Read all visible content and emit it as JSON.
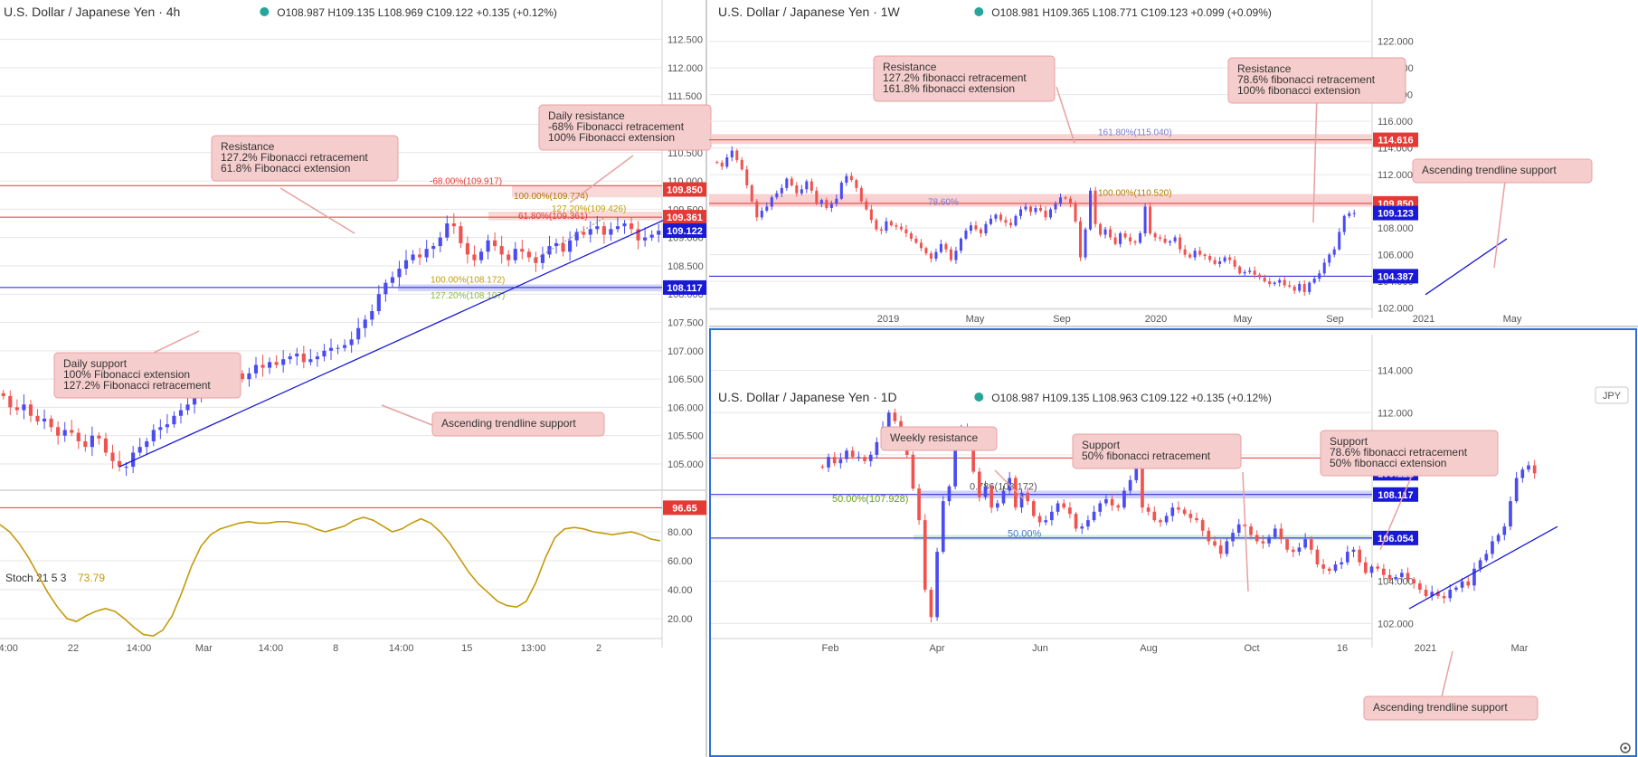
{
  "colors": {
    "up": "#4b4bf0",
    "down": "#ef5350",
    "resistance": "#e53935",
    "support": "#1a1ad6",
    "trend": "#1a1ad6",
    "stoch": "#c49a0a",
    "callout_bg": "#f6cdcd",
    "callout_border": "#e8a0a0",
    "zone_red": "#f6c7c7",
    "zone_blue": "#c7c9f7",
    "grid": "#e6e6e6",
    "axis_text": "#555555",
    "header_text": "#333333",
    "status_dot": "#26a69a",
    "active_border": "#2b6fd6"
  },
  "panels": [
    {
      "id": "4h",
      "title": "U.S. Dollar / Japanese Yen · 4h",
      "ohlc": "O108.987  H109.135  L108.969  C109.122  +0.135 (+0.12%)"
    },
    {
      "id": "1w",
      "title": "U.S. Dollar / Japanese Yen · 1W",
      "ohlc": "O108.981  H109.365  L108.771  C109.123  +0.099 (+0.09%)"
    },
    {
      "id": "1d",
      "title": "U.S. Dollar / Japanese Yen · 1D",
      "ohlc": "O108.987  H109.135  L108.963  C109.122  +0.135 (+0.12%)",
      "currency_badge": "JPY"
    }
  ],
  "stoch": {
    "label": "Stoch 21 5 3",
    "value": "73.79"
  },
  "chart_data": [
    {
      "panel": "4h",
      "type": "candlestick",
      "title": "U.S. Dollar / Japanese Yen · 4h",
      "ylim": [
        104.6,
        112.75
      ],
      "yticks": [
        "112.500",
        "112.000",
        "111.500",
        "111.000",
        "110.500",
        "110.000",
        "109.500",
        "109.000",
        "108.500",
        "108.000",
        "107.500",
        "107.000",
        "106.500",
        "106.000",
        "105.500",
        "105.000"
      ],
      "xticks": [
        "14:00",
        "22",
        "14:00",
        "Mar",
        "14:00",
        "8",
        "14:00",
        "15",
        "13:00",
        "2"
      ],
      "price_labels": [
        {
          "text": "109.850",
          "value": 109.85,
          "kind": "resistance"
        },
        {
          "text": "109.361",
          "value": 109.361,
          "kind": "resistance"
        },
        {
          "text": "109.122",
          "value": 109.122,
          "kind": "current"
        },
        {
          "text": "108.117",
          "value": 108.117,
          "kind": "support"
        }
      ],
      "horizontal_lines": [
        {
          "value": 109.917,
          "kind": "resistance",
          "label": "-68.00%(109.917)"
        },
        {
          "value": 109.361,
          "kind": "resistance",
          "label": "61.80%(109.361)"
        },
        {
          "value": 108.117,
          "kind": "support",
          "label": "100.00%(108.172)"
        }
      ],
      "level_labels": [
        "-68.00%(109.917)",
        "100.00%(109.774)",
        "61.80%(109.361)",
        "127.20%(109.426)",
        "100.00%(108.172)",
        "127.20%(108.107)"
      ],
      "candles_close": [
        106.2,
        106.0,
        105.95,
        106.05,
        105.85,
        105.75,
        105.8,
        105.65,
        105.5,
        105.6,
        105.55,
        105.4,
        105.3,
        105.5,
        105.45,
        105.2,
        105.05,
        104.95,
        104.95,
        105.2,
        105.3,
        105.4,
        105.6,
        105.65,
        105.7,
        105.85,
        105.95,
        106.05,
        106.2,
        106.35,
        106.4,
        106.3,
        106.45,
        106.55,
        106.6,
        106.5,
        106.6,
        106.75,
        106.7,
        106.8,
        106.75,
        106.85,
        106.9,
        106.95,
        106.8,
        106.85,
        106.9,
        107.0,
        107.05,
        107.05,
        107.1,
        107.2,
        107.4,
        107.55,
        107.7,
        108.0,
        108.2,
        108.3,
        108.45,
        108.6,
        108.7,
        108.65,
        108.8,
        108.85,
        109.0,
        109.25,
        109.2,
        108.9,
        108.7,
        108.6,
        108.75,
        108.95,
        108.85,
        108.7,
        108.6,
        108.8,
        108.75,
        108.65,
        108.55,
        108.7,
        108.85,
        108.9,
        108.75,
        108.95,
        109.1,
        109.05,
        109.15,
        109.2,
        109.05,
        109.15,
        109.2,
        109.25,
        109.15,
        108.95,
        109.0,
        109.05,
        109.12
      ],
      "trendline": [
        [
          104.95,
          "start"
        ],
        [
          109.47,
          "end"
        ]
      ],
      "annotations": [
        {
          "text": [
            "Resistance",
            "127.2% Fibonacci retracement",
            "61.8% Fibonacci extension"
          ]
        },
        {
          "text": [
            "Daily resistance",
            "-68% Fibonacci retracement",
            "100% Fibonacci extension"
          ]
        },
        {
          "text": [
            "Daily support",
            "100% Fibonacci extension",
            "127.2% Fibonacci retracement"
          ]
        },
        {
          "text": [
            "Ascending trendline support"
          ]
        }
      ]
    },
    {
      "panel": "stoch",
      "type": "line",
      "title": "Stoch 21 5 3",
      "ylim": [
        5,
        105
      ],
      "yticks": [
        "80.00",
        "60.00",
        "40.00",
        "20.00"
      ],
      "price_labels": [
        {
          "text": "96.65",
          "value": 96.65,
          "kind": "resistance"
        }
      ],
      "values": [
        85,
        80,
        72,
        62,
        50,
        38,
        28,
        20,
        18,
        22,
        25,
        27,
        25,
        20,
        14,
        9,
        8,
        12,
        22,
        38,
        56,
        70,
        78,
        82,
        84,
        86,
        87,
        86,
        86,
        87,
        87,
        86,
        85,
        82,
        80,
        82,
        84,
        88,
        90,
        88,
        84,
        80,
        82,
        86,
        89,
        86,
        80,
        72,
        62,
        52,
        44,
        38,
        32,
        29,
        28,
        32,
        45,
        62,
        76,
        82,
        83,
        82,
        80,
        79,
        78,
        79,
        80,
        78,
        75,
        73.79
      ]
    },
    {
      "panel": "1w",
      "type": "candlestick",
      "title": "U.S. Dollar / Japanese Yen · 1W",
      "ylim": [
        101.7,
        123.2
      ],
      "yticks": [
        "122.000",
        "120.000",
        "118.000",
        "116.000",
        "114.000",
        "112.000",
        "110.000",
        "108.000",
        "106.000",
        "104.000",
        "102.000"
      ],
      "xticks": [
        "2019",
        "May",
        "Sep",
        "2020",
        "May",
        "Sep",
        "2021",
        "May"
      ],
      "price_labels": [
        {
          "text": "114.616",
          "value": 114.616,
          "kind": "resistance"
        },
        {
          "text": "109.850",
          "value": 109.85,
          "kind": "resistance"
        },
        {
          "text": "109.123",
          "value": 109.123,
          "kind": "current"
        },
        {
          "text": "104.387",
          "value": 104.387,
          "kind": "support"
        }
      ],
      "horizontal_lines": [
        {
          "value": 114.616,
          "kind": "resistance",
          "label": "161.80%(115.040)"
        },
        {
          "value": 109.85,
          "kind": "resistance",
          "label": "100.00%(110.520)"
        },
        {
          "value": 104.387,
          "kind": "support",
          "label": ""
        }
      ],
      "level_labels": [
        "161.80%(115.040)",
        "100.00%(110.520)",
        "78.60%"
      ],
      "candles_close": [
        112.9,
        112.6,
        113.3,
        113.8,
        113.1,
        112.4,
        111.2,
        110.0,
        108.8,
        109.3,
        109.6,
        110.3,
        110.6,
        111.0,
        111.7,
        111.2,
        110.6,
        110.9,
        111.5,
        110.8,
        109.8,
        110.1,
        109.5,
        109.8,
        110.2,
        111.4,
        111.9,
        111.6,
        111.0,
        110.0,
        109.4,
        108.6,
        107.9,
        107.8,
        108.5,
        108.2,
        108.1,
        107.9,
        107.6,
        107.2,
        106.9,
        106.5,
        106.1,
        105.7,
        106.2,
        106.8,
        106.4,
        105.6,
        106.3,
        107.2,
        107.8,
        108.2,
        107.9,
        107.6,
        108.3,
        108.7,
        109.0,
        108.6,
        108.4,
        108.2,
        108.9,
        109.4,
        109.6,
        109.2,
        109.5,
        109.3,
        108.8,
        109.4,
        109.8,
        110.3,
        110.2,
        109.8,
        108.5,
        105.8,
        107.9,
        110.8,
        108.3,
        107.5,
        107.9,
        107.3,
        106.8,
        107.6,
        107.3,
        107.0,
        106.9,
        107.6,
        109.6,
        107.6,
        107.3,
        107.2,
        106.9,
        107.0,
        107.3,
        106.4,
        106.0,
        105.8,
        106.3,
        106.0,
        105.9,
        105.6,
        105.3,
        105.5,
        105.8,
        105.6,
        105.1,
        104.6,
        104.7,
        104.8,
        104.5,
        104.3,
        104.0,
        103.8,
        103.9,
        104.1,
        103.7,
        103.6,
        103.3,
        103.8,
        103.2,
        103.9,
        104.2,
        104.6,
        105.4,
        106.0,
        106.4,
        107.7,
        108.9,
        109.1,
        109.123
      ],
      "trendline": [
        [
          103.0,
          "start"
        ],
        [
          107.2,
          "end"
        ]
      ],
      "annotations": [
        {
          "text": [
            "Resistance",
            "127.2% fibonacci retracement",
            "161.8% fibonacci extension"
          ]
        },
        {
          "text": [
            "Resistance",
            "78.6% fibonacci retracement",
            "100% fibonacci extension"
          ]
        },
        {
          "text": [
            "Ascending trendline support"
          ]
        }
      ]
    },
    {
      "panel": "1d",
      "type": "candlestick",
      "title": "U.S. Dollar / Japanese Yen · 1D",
      "ylim": [
        101.2,
        114.5
      ],
      "yticks": [
        "114.000",
        "112.000",
        "110.000",
        "108.000",
        "106.000",
        "104.000",
        "102.000"
      ],
      "xticks": [
        "Feb",
        "Apr",
        "Jun",
        "Aug",
        "Oct",
        "16",
        "2021",
        "Mar"
      ],
      "price_labels": [
        {
          "text": "109.850",
          "value": 109.85,
          "kind": "resistance"
        },
        {
          "text": "109.122",
          "value": 109.122,
          "kind": "current"
        },
        {
          "text": "108.117",
          "value": 108.117,
          "kind": "support"
        },
        {
          "text": "106.054",
          "value": 106.054,
          "kind": "support"
        }
      ],
      "horizontal_lines": [
        {
          "value": 109.85,
          "kind": "resistance",
          "label": ""
        },
        {
          "value": 108.117,
          "kind": "support",
          "label": "50.00%(107.928)"
        },
        {
          "value": 106.054,
          "kind": "support",
          "label": "50.00%"
        }
      ],
      "level_labels": [
        "50.00%(107.928)",
        "0.786(108.172)",
        "50.00%"
      ],
      "candles_close": [
        109.4,
        109.9,
        109.6,
        109.8,
        110.2,
        109.9,
        109.9,
        109.7,
        110.0,
        110.6,
        111.3,
        112.0,
        111.6,
        110.8,
        110.0,
        108.4,
        106.9,
        103.6,
        102.3,
        105.4,
        107.8,
        108.5,
        110.5,
        111.2,
        111.0,
        109.2,
        108.0,
        108.5,
        107.5,
        107.7,
        108.3,
        108.9,
        107.5,
        108.2,
        107.8,
        107.1,
        106.8,
        106.9,
        107.3,
        107.7,
        107.5,
        107.2,
        106.5,
        106.6,
        106.9,
        107.3,
        107.7,
        107.9,
        107.6,
        107.5,
        108.3,
        108.8,
        109.5,
        107.5,
        107.3,
        106.9,
        106.8,
        107.1,
        107.5,
        107.4,
        107.2,
        107.0,
        106.9,
        106.4,
        105.9,
        105.7,
        105.3,
        105.9,
        106.3,
        106.7,
        106.6,
        106.2,
        105.9,
        105.8,
        106.1,
        106.5,
        106.0,
        105.5,
        105.4,
        105.6,
        106.0,
        105.5,
        104.8,
        104.6,
        104.5,
        104.8,
        104.9,
        105.4,
        105.5,
        104.9,
        104.4,
        104.7,
        104.6,
        104.3,
        104.1,
        104.2,
        104.4,
        104.1,
        103.9,
        103.6,
        103.3,
        103.5,
        103.3,
        103.2,
        103.6,
        103.7,
        104.0,
        103.8,
        104.6,
        105.0,
        105.3,
        105.9,
        106.2,
        106.6,
        107.8,
        108.9,
        109.3,
        109.5,
        109.122
      ],
      "trendline": [
        [
          102.7,
          "start"
        ],
        [
          106.6,
          "end"
        ]
      ],
      "annotations": [
        {
          "text": [
            "Weekly resistance"
          ]
        },
        {
          "text": [
            "Support",
            "50% fibonacci retracement"
          ]
        },
        {
          "text": [
            "Support",
            "78.6% fibonacci retracement",
            "50% fibonacci extension"
          ]
        },
        {
          "text": [
            "Ascending trendline support"
          ]
        }
      ]
    }
  ]
}
